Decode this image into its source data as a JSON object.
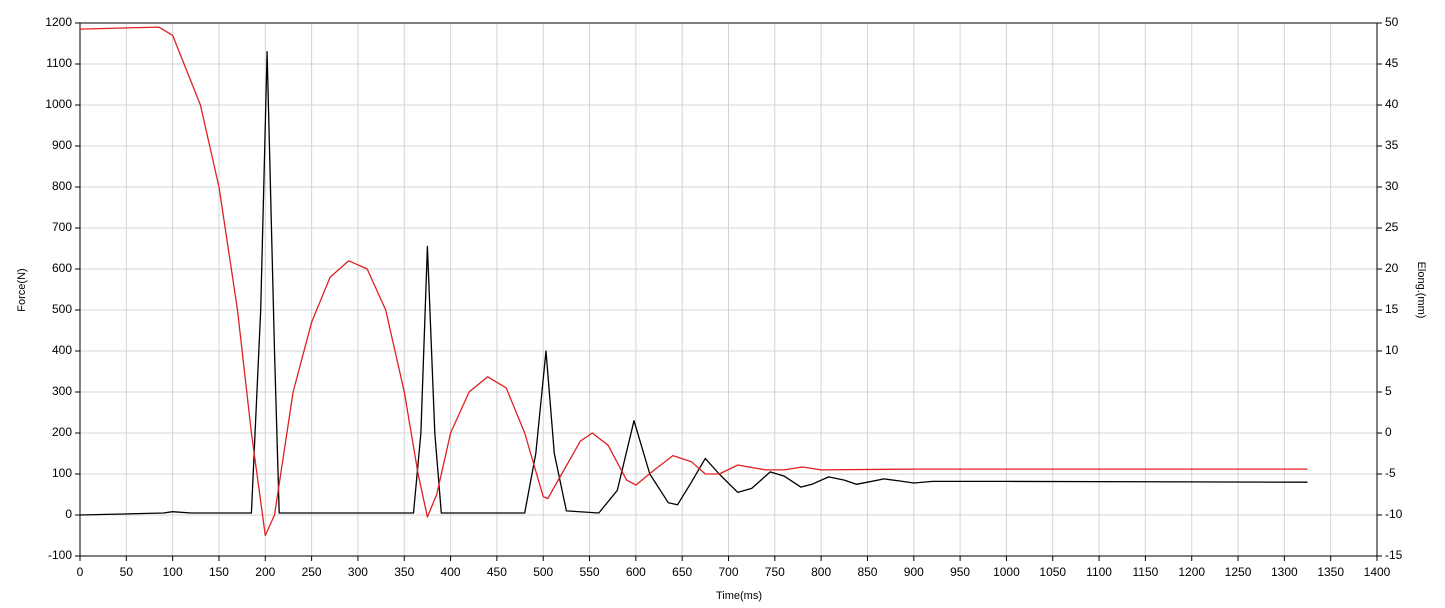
{
  "chart_data": {
    "type": "line",
    "x_label": "Time(ms)",
    "y_label": "Force(N)",
    "y2_label": "Elong.(mm)",
    "xlim": [
      0,
      1400
    ],
    "xticks": [
      0,
      50,
      100,
      150,
      200,
      250,
      300,
      350,
      400,
      450,
      500,
      550,
      600,
      650,
      700,
      750,
      800,
      850,
      900,
      950,
      1000,
      1050,
      1100,
      1150,
      1200,
      1250,
      1300,
      1350,
      1400
    ],
    "ylim": [
      -100,
      1200
    ],
    "yticks": [
      -100,
      0,
      100,
      200,
      300,
      400,
      500,
      600,
      700,
      800,
      900,
      1000,
      1100,
      1200
    ],
    "y2lim": [
      -15,
      50
    ],
    "y2ticks": [
      -15,
      -10,
      -5,
      0,
      5,
      10,
      15,
      20,
      25,
      30,
      35,
      40,
      45,
      50
    ],
    "grid": true,
    "series": [
      {
        "name": "Force",
        "color": "#000000",
        "axis": "y",
        "x": [
          0,
          90,
          100,
          120,
          185,
          195,
          202,
          210,
          215,
          360,
          368,
          375,
          383,
          390,
          480,
          492,
          503,
          512,
          525,
          560,
          580,
          598,
          615,
          635,
          645,
          660,
          675,
          690,
          710,
          725,
          745,
          760,
          778,
          790,
          808,
          825,
          838,
          850,
          868,
          885,
          900,
          920,
          1000,
          1325
        ],
        "values": [
          0,
          5,
          8,
          5,
          5,
          500,
          1130,
          400,
          5,
          5,
          200,
          655,
          200,
          5,
          5,
          150,
          400,
          150,
          10,
          5,
          60,
          230,
          100,
          30,
          25,
          80,
          138,
          100,
          55,
          65,
          105,
          95,
          68,
          75,
          93,
          85,
          75,
          80,
          88,
          83,
          78,
          82,
          82,
          80
        ]
      },
      {
        "name": "Elong",
        "color": "#e02020",
        "axis": "y2",
        "x": [
          0,
          85,
          100,
          130,
          150,
          170,
          185,
          200,
          210,
          230,
          250,
          270,
          290,
          310,
          330,
          350,
          365,
          375,
          385,
          400,
          420,
          440,
          460,
          480,
          500,
          505,
          520,
          540,
          553,
          570,
          590,
          600,
          620,
          640,
          660,
          675,
          690,
          710,
          740,
          760,
          780,
          800,
          900,
          1325
        ],
        "values": [
          49.25,
          49.5,
          48.5,
          40,
          30,
          15,
          0,
          -12.5,
          -10,
          5,
          13.5,
          19,
          21,
          20,
          15,
          5,
          -5,
          -10.25,
          -7.5,
          0,
          5,
          6.85,
          5.5,
          0,
          -7.75,
          -8,
          -5,
          -1,
          0,
          -1.5,
          -5.75,
          -6.35,
          -4.5,
          -2.75,
          -3.5,
          -5,
          -5,
          -3.9,
          -4.5,
          -4.5,
          -4.15,
          -4.5,
          -4.4,
          -4.4
        ]
      }
    ]
  }
}
